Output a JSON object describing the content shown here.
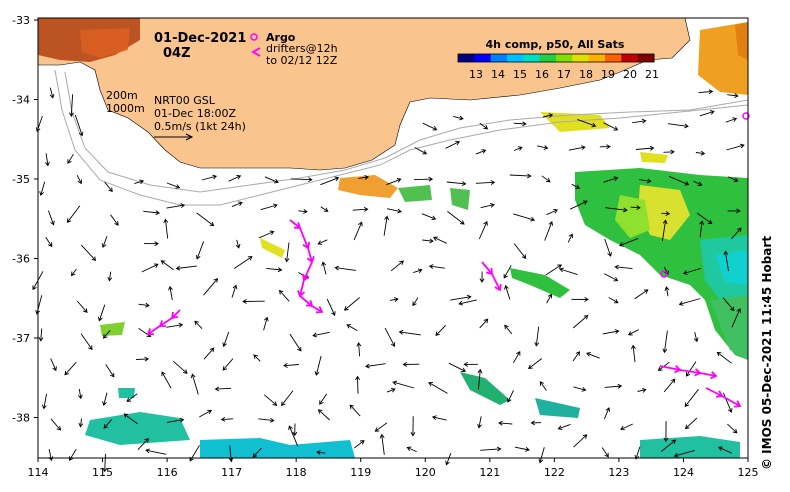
{
  "header": {
    "date": "01-Dec-2021",
    "time": "04Z"
  },
  "legend": {
    "argo_label": "Argo",
    "drifters_label": "drifters@12h",
    "drifters_to": "to 02/12 12Z",
    "colorbar_title": "4h comp, p50, All Sats",
    "colorbar_ticks": [
      "13",
      "14",
      "15",
      "16",
      "17",
      "18",
      "19",
      "20",
      "21"
    ]
  },
  "info": {
    "contour1": "200m",
    "contour2": "1000m",
    "product": "NRT00 GSL",
    "valid": "01-Dec 18:00Z",
    "scale": "0.5m/s (1kt 24h)"
  },
  "axes": {
    "x_ticks": [
      "114",
      "115",
      "116",
      "117",
      "118",
      "119",
      "120",
      "121",
      "122",
      "123",
      "124",
      "125"
    ],
    "y_ticks": [
      "-33",
      "-34",
      "-35",
      "-36",
      "-37",
      "-38"
    ]
  },
  "credit": "© IMOS 05-Dec-2021 11:45 Hobart",
  "colors": {
    "land": "#f9c48e",
    "argo": "#ff00ff",
    "drifter": "#ff00ff",
    "contour": "#aaaaaa",
    "colorbar": [
      "#000080",
      "#0000ff",
      "#0080ff",
      "#00c0ff",
      "#00e0c0",
      "#20d040",
      "#80e000",
      "#e0e000",
      "#ffb000",
      "#ff6000",
      "#c00000",
      "#800000"
    ]
  }
}
